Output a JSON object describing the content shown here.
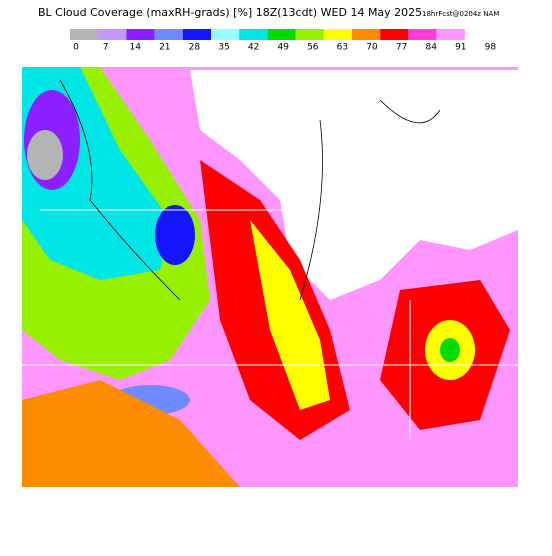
{
  "header": {
    "title": "BL Cloud Coverage (maxRH-grads) [%] 18Z(13cdt) WED 14 May 2025",
    "info": "18hrFcst@0204z NAM"
  },
  "legend": {
    "labels": [
      0,
      7,
      14,
      21,
      28,
      35,
      42,
      49,
      56,
      63,
      70,
      77,
      84,
      91,
      98
    ],
    "colors": [
      "#b4b4b4",
      "#c496ff",
      "#8c1eff",
      "#6e8cff",
      "#1414ff",
      "#96ffff",
      "#00e6e6",
      "#00dc00",
      "#96f000",
      "#ffff00",
      "#ff8c00",
      "#ff0000",
      "#ff3cdc",
      "#ff96ff"
    ]
  }
}
